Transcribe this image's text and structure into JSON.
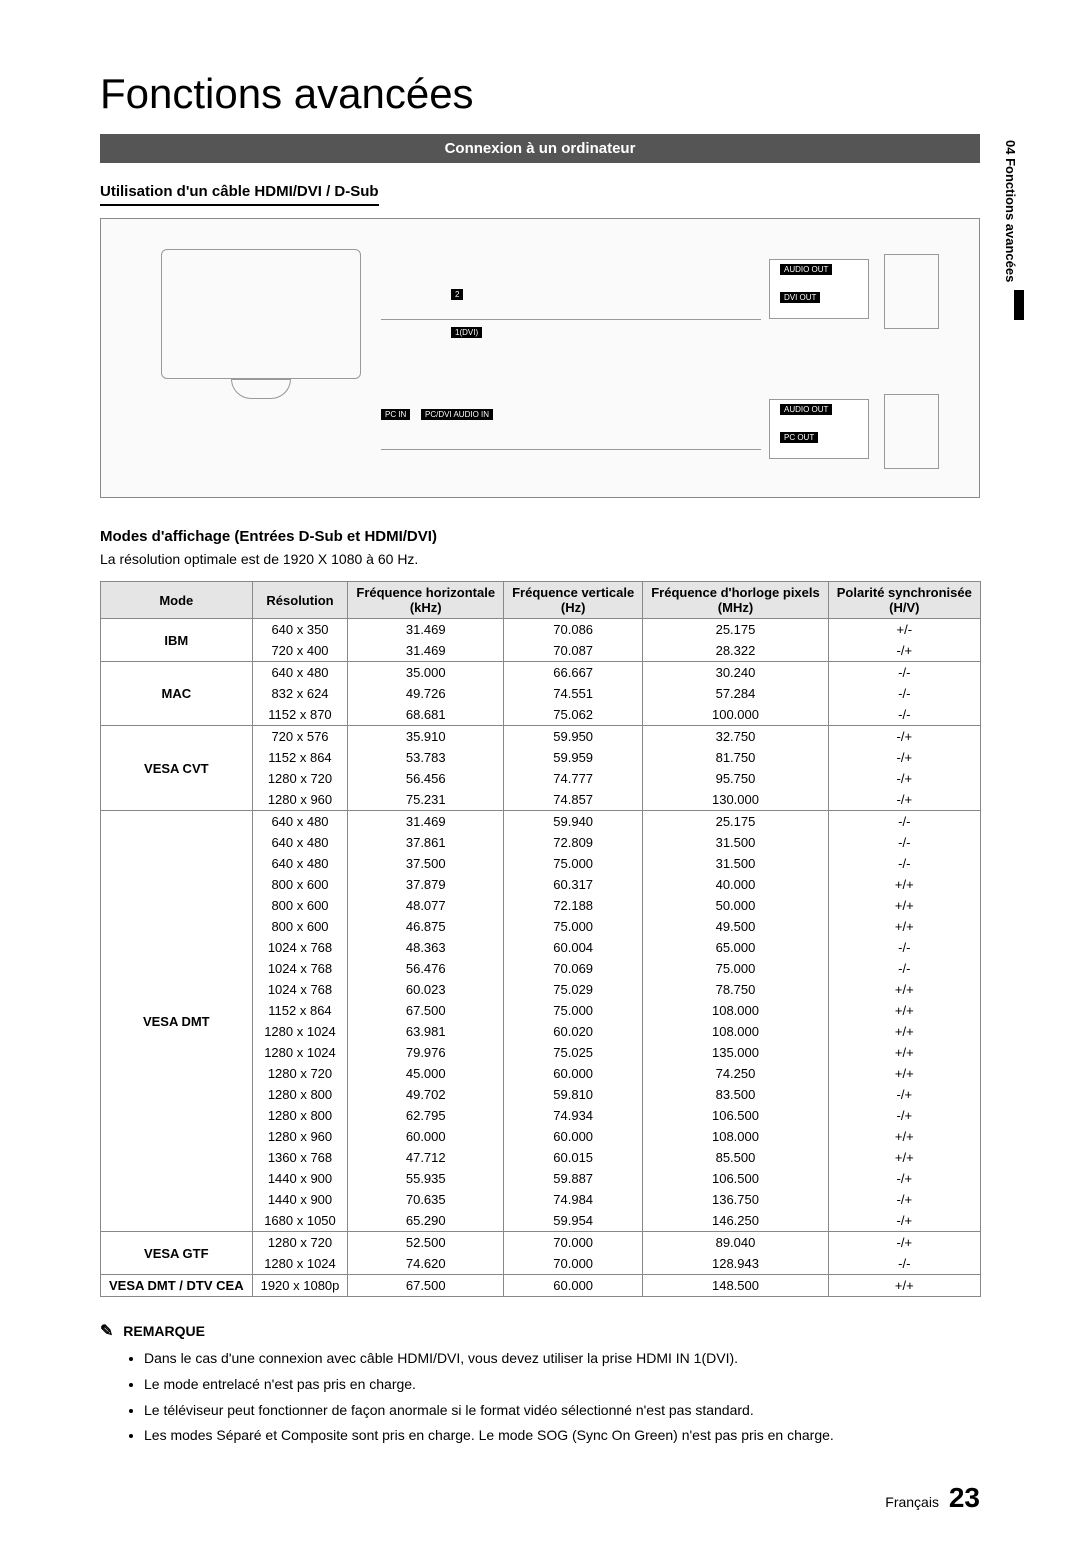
{
  "page": {
    "title": "Fonctions avancées",
    "section_bar": "Connexion à un ordinateur",
    "subtitle": "Utilisation d'un câble HDMI/DVI / D-Sub",
    "side_tab": "04  Fonctions avancées",
    "modes_heading": "Modes d'affichage (Entrées D-Sub et HDMI/DVI)",
    "optimal_text": "La résolution optimale est de 1920 X 1080 à 60 Hz.",
    "footer_lang": "Français",
    "footer_page": "23"
  },
  "diagram": {
    "labels": {
      "audio_out": "AUDIO OUT",
      "dvi_out": "DVI OUT",
      "pc_out": "PC OUT",
      "pc_in": "PC IN",
      "pc_dvi_audio_in": "PC/DVI AUDIO IN",
      "one_dvi": "1(DVI)",
      "two": "2"
    }
  },
  "table": {
    "headers": {
      "mode": "Mode",
      "resolution": "Résolution",
      "hfreq": "Fréquence horizontale",
      "hfreq_unit": "(kHz)",
      "vfreq": "Fréquence verticale",
      "vfreq_unit": "(Hz)",
      "pclk": "Fréquence d'horloge pixels",
      "pclk_unit": "(MHz)",
      "pol": "Polarité synchronisée",
      "pol_unit": "(H/V)"
    },
    "header_bg": "#e5e5e5",
    "border_color": "#888888",
    "groups": [
      {
        "mode": "IBM",
        "rows": [
          {
            "res": "640 x 350",
            "h": "31.469",
            "v": "70.086",
            "p": "25.175",
            "s": "+/-"
          },
          {
            "res": "720 x 400",
            "h": "31.469",
            "v": "70.087",
            "p": "28.322",
            "s": "-/+"
          }
        ]
      },
      {
        "mode": "MAC",
        "rows": [
          {
            "res": "640 x 480",
            "h": "35.000",
            "v": "66.667",
            "p": "30.240",
            "s": "-/-"
          },
          {
            "res": "832 x 624",
            "h": "49.726",
            "v": "74.551",
            "p": "57.284",
            "s": "-/-"
          },
          {
            "res": "1152 x 870",
            "h": "68.681",
            "v": "75.062",
            "p": "100.000",
            "s": "-/-"
          }
        ]
      },
      {
        "mode": "VESA CVT",
        "rows": [
          {
            "res": "720 x 576",
            "h": "35.910",
            "v": "59.950",
            "p": "32.750",
            "s": "-/+"
          },
          {
            "res": "1152 x 864",
            "h": "53.783",
            "v": "59.959",
            "p": "81.750",
            "s": "-/+"
          },
          {
            "res": "1280 x 720",
            "h": "56.456",
            "v": "74.777",
            "p": "95.750",
            "s": "-/+"
          },
          {
            "res": "1280 x 960",
            "h": "75.231",
            "v": "74.857",
            "p": "130.000",
            "s": "-/+"
          }
        ]
      },
      {
        "mode": "VESA DMT",
        "rows": [
          {
            "res": "640 x 480",
            "h": "31.469",
            "v": "59.940",
            "p": "25.175",
            "s": "-/-"
          },
          {
            "res": "640 x 480",
            "h": "37.861",
            "v": "72.809",
            "p": "31.500",
            "s": "-/-"
          },
          {
            "res": "640 x 480",
            "h": "37.500",
            "v": "75.000",
            "p": "31.500",
            "s": "-/-"
          },
          {
            "res": "800 x 600",
            "h": "37.879",
            "v": "60.317",
            "p": "40.000",
            "s": "+/+"
          },
          {
            "res": "800 x 600",
            "h": "48.077",
            "v": "72.188",
            "p": "50.000",
            "s": "+/+"
          },
          {
            "res": "800 x 600",
            "h": "46.875",
            "v": "75.000",
            "p": "49.500",
            "s": "+/+"
          },
          {
            "res": "1024 x 768",
            "h": "48.363",
            "v": "60.004",
            "p": "65.000",
            "s": "-/-"
          },
          {
            "res": "1024 x 768",
            "h": "56.476",
            "v": "70.069",
            "p": "75.000",
            "s": "-/-"
          },
          {
            "res": "1024 x 768",
            "h": "60.023",
            "v": "75.029",
            "p": "78.750",
            "s": "+/+"
          },
          {
            "res": "1152 x 864",
            "h": "67.500",
            "v": "75.000",
            "p": "108.000",
            "s": "+/+"
          },
          {
            "res": "1280 x 1024",
            "h": "63.981",
            "v": "60.020",
            "p": "108.000",
            "s": "+/+"
          },
          {
            "res": "1280 x 1024",
            "h": "79.976",
            "v": "75.025",
            "p": "135.000",
            "s": "+/+"
          },
          {
            "res": "1280 x 720",
            "h": "45.000",
            "v": "60.000",
            "p": "74.250",
            "s": "+/+"
          },
          {
            "res": "1280 x 800",
            "h": "49.702",
            "v": "59.810",
            "p": "83.500",
            "s": "-/+"
          },
          {
            "res": "1280 x 800",
            "h": "62.795",
            "v": "74.934",
            "p": "106.500",
            "s": "-/+"
          },
          {
            "res": "1280 x 960",
            "h": "60.000",
            "v": "60.000",
            "p": "108.000",
            "s": "+/+"
          },
          {
            "res": "1360 x 768",
            "h": "47.712",
            "v": "60.015",
            "p": "85.500",
            "s": "+/+"
          },
          {
            "res": "1440 x 900",
            "h": "55.935",
            "v": "59.887",
            "p": "106.500",
            "s": "-/+"
          },
          {
            "res": "1440 x 900",
            "h": "70.635",
            "v": "74.984",
            "p": "136.750",
            "s": "-/+"
          },
          {
            "res": "1680 x 1050",
            "h": "65.290",
            "v": "59.954",
            "p": "146.250",
            "s": "-/+"
          }
        ]
      },
      {
        "mode": "VESA GTF",
        "rows": [
          {
            "res": "1280 x 720",
            "h": "52.500",
            "v": "70.000",
            "p": "89.040",
            "s": "-/+"
          },
          {
            "res": "1280 x 1024",
            "h": "74.620",
            "v": "70.000",
            "p": "128.943",
            "s": "-/-"
          }
        ]
      },
      {
        "mode": "VESA DMT / DTV CEA",
        "rows": [
          {
            "res": "1920 x 1080p",
            "h": "67.500",
            "v": "60.000",
            "p": "148.500",
            "s": "+/+"
          }
        ]
      }
    ]
  },
  "remarque": {
    "heading": "REMARQUE",
    "items": [
      "Dans le cas d'une connexion avec câble HDMI/DVI, vous devez utiliser la prise HDMI IN 1(DVI).",
      "Le mode entrelacé n'est pas pris en charge.",
      "Le téléviseur peut fonctionner de façon anormale si le format vidéo sélectionné n'est pas standard.",
      "Les modes Séparé et Composite sont pris en charge. Le mode SOG (Sync On Green) n'est pas pris en charge."
    ]
  }
}
